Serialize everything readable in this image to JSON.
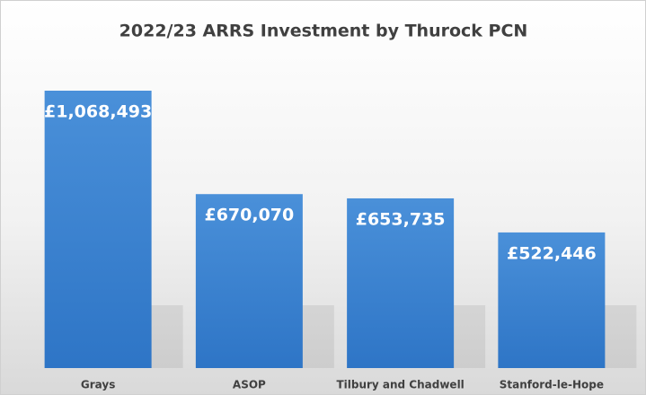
{
  "chart_data": {
    "type": "bar",
    "title": "2022/23 ARRS Investment by Thurock PCN",
    "categories": [
      "Grays",
      "ASOP",
      "Tilbury and Chadwell",
      "Stanford-le-Hope"
    ],
    "values": [
      1068493,
      670070,
      653735,
      522446
    ],
    "value_labels": [
      "£1,068,493",
      "£670,070",
      "£653,735",
      "£522,446"
    ],
    "color": "#3f88d3"
  }
}
